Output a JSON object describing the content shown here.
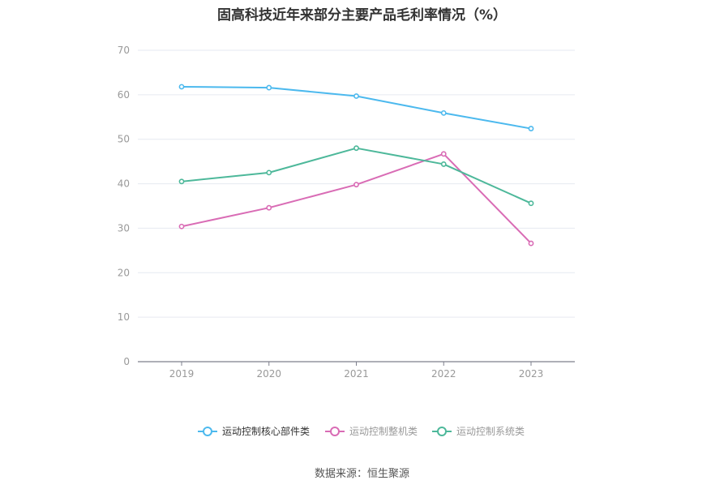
{
  "chart_data": {
    "type": "line",
    "title": "固高科技近年来部分主要产品毛利率情况（%）",
    "xlabel": "",
    "ylabel": "",
    "categories": [
      "2019",
      "2020",
      "2021",
      "2022",
      "2023"
    ],
    "ylim": [
      0,
      70
    ],
    "yticks": [
      0,
      10,
      20,
      30,
      40,
      50,
      60,
      70
    ],
    "grid": true,
    "legend_position": "bottom",
    "series": [
      {
        "name": "运动控制核心部件类",
        "color": "#4cb9ee",
        "values": [
          61.8,
          61.6,
          59.7,
          55.9,
          52.4
        ]
      },
      {
        "name": "运动控制整机类",
        "color": "#d96cb5",
        "values": [
          30.4,
          34.6,
          39.8,
          46.7,
          26.6
        ]
      },
      {
        "name": "运动控制系统类",
        "color": "#4db89a",
        "values": [
          40.5,
          42.5,
          48.0,
          44.4,
          35.6
        ]
      }
    ]
  },
  "source": "数据来源：恒生聚源"
}
